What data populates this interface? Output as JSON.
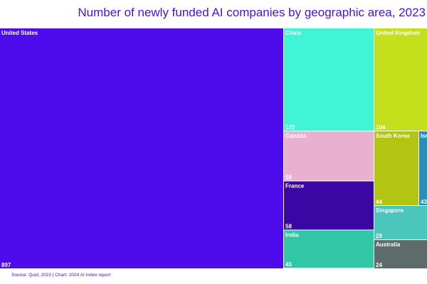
{
  "chart_data": {
    "type": "treemap",
    "title": "Number of newly funded AI companies by geographic area, 2023",
    "source": "Source: Quid, 2023 | Chart: 2024 AI Index report",
    "items": [
      {
        "name": "United States",
        "value": 897,
        "color": "#4e0ced",
        "text_color": "#ffffff"
      },
      {
        "name": "China",
        "value": 122,
        "color": "#40f5d6",
        "text_color": "#ffffff"
      },
      {
        "name": "United Kingdom",
        "value": 104,
        "color": "#c4e01c",
        "text_color": "#ffffff"
      },
      {
        "name": "Canada",
        "value": 59,
        "color": "#e9b0d0",
        "text_color": "#ffffff"
      },
      {
        "name": "France",
        "value": 58,
        "color": "#3a06a4",
        "text_color": "#ffffff"
      },
      {
        "name": "India",
        "value": 45,
        "color": "#30c6a6",
        "text_color": "#ffffff"
      },
      {
        "name": "South Korea",
        "value": 44,
        "color": "#b4c412",
        "text_color": "#ffffff"
      },
      {
        "name": "Israel",
        "value": 43,
        "color": "#2a8fb6",
        "text_color": "#ffffff"
      },
      {
        "name": "Singapore",
        "value": 29,
        "color": "#4ac6bc",
        "text_color": "#ffffff"
      },
      {
        "name": "Australia",
        "value": 24,
        "color": "#5f6b6b",
        "text_color": "#ffffff"
      }
    ]
  }
}
